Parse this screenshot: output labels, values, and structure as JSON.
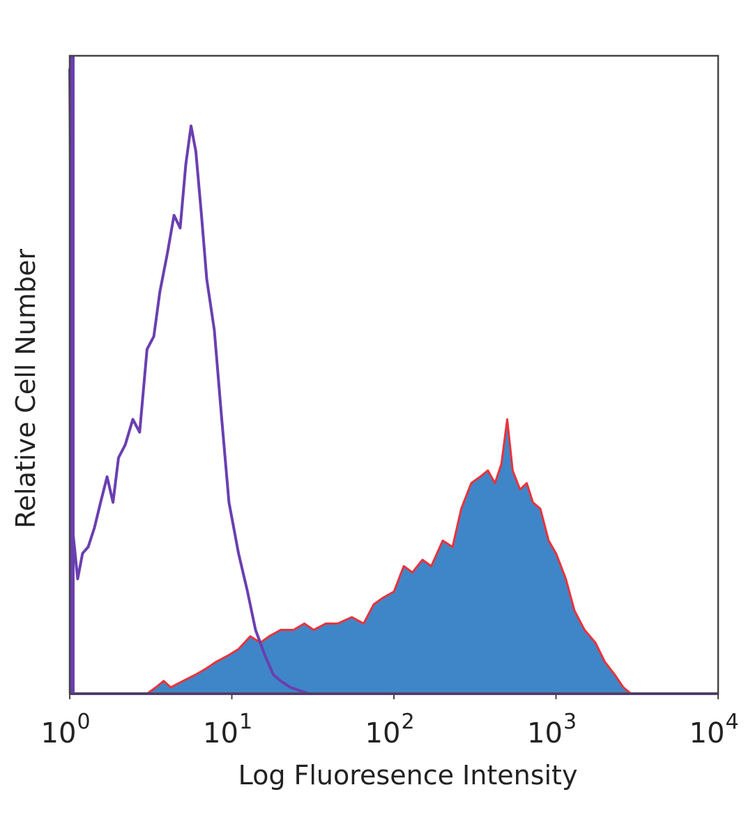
{
  "chart_data": {
    "type": "area",
    "xscale": "log",
    "xlim": [
      1,
      10000
    ],
    "ylim": [
      0,
      100
    ],
    "xlabel": "Log Fluoresence Intensity",
    "ylabel": "Relative Cell Number",
    "xticks": [
      {
        "base": "10",
        "exp": "0",
        "value": 1
      },
      {
        "base": "10",
        "exp": "1",
        "value": 10
      },
      {
        "base": "10",
        "exp": "2",
        "value": 100
      },
      {
        "base": "10",
        "exp": "3",
        "value": 1000
      },
      {
        "base": "10",
        "exp": "4",
        "value": 10000
      }
    ],
    "colors": {
      "filled_series_fill": "#3f86c8",
      "filled_series_edge": "#e8333b",
      "outline_series": "#6a3fb0",
      "frame": "#444444"
    },
    "series": [
      {
        "style": "outline",
        "x": [
          1.0,
          1.05,
          1.12,
          1.2,
          1.3,
          1.42,
          1.55,
          1.7,
          1.85,
          2.0,
          2.2,
          2.45,
          2.7,
          3.0,
          3.3,
          3.6,
          4.0,
          4.4,
          4.8,
          5.2,
          5.6,
          6.0,
          6.5,
          7.0,
          7.8,
          8.6,
          9.6,
          11.0,
          12.5,
          14.0,
          16.0,
          18.0,
          20.0,
          23.0,
          26.0,
          30.0
        ],
        "values": [
          98,
          25,
          18,
          22,
          23,
          26,
          30,
          34,
          30,
          37,
          39,
          43,
          41,
          54,
          56,
          63,
          69,
          75,
          73,
          83,
          89,
          85,
          75,
          65,
          57,
          44,
          30,
          22,
          16,
          10,
          6,
          3,
          2,
          1,
          0.5,
          0
        ]
      },
      {
        "style": "filled",
        "x": [
          3.0,
          3.4,
          3.8,
          4.2,
          5.0,
          6.0,
          7.0,
          8.0,
          9.5,
          11.0,
          13.0,
          15.0,
          17.0,
          20.0,
          24.0,
          28.0,
          32.0,
          38.0,
          45.0,
          55.0,
          65.0,
          75.0,
          85.0,
          100.0,
          115.0,
          130.0,
          150.0,
          170.0,
          200.0,
          230.0,
          260.0,
          300.0,
          340.0,
          380.0,
          420.0,
          460.0,
          500.0,
          540.0,
          600.0,
          660.0,
          720.0,
          800.0,
          900.0,
          1000.0,
          1150.0,
          1300.0,
          1500.0,
          1750.0,
          2000.0,
          2300.0,
          2600.0,
          2900.0
        ],
        "values": [
          0,
          1,
          2,
          1,
          2,
          3,
          4,
          5,
          6,
          7,
          9,
          8,
          9,
          10,
          10,
          11,
          10,
          11,
          11,
          12,
          11,
          14,
          15,
          16,
          20,
          19,
          21,
          20,
          24,
          23,
          29,
          33,
          34,
          35,
          33,
          36,
          43,
          35,
          32,
          33,
          30,
          29,
          24,
          22,
          18,
          13,
          10,
          8,
          5,
          3,
          1,
          0
        ]
      }
    ]
  }
}
